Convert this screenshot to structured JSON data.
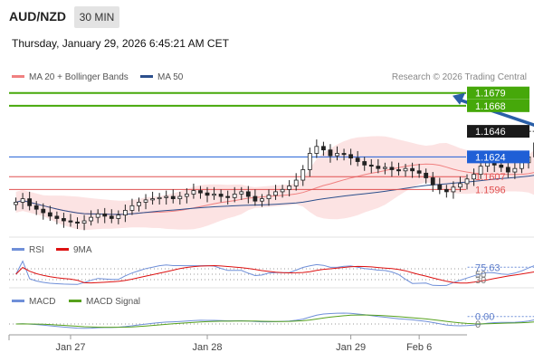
{
  "header": {
    "pair": "AUD/NZD",
    "timeframe": "30 MIN",
    "timestamp": "Thursday, January 29, 2026 6:45:21 AM CET",
    "credit": "Research © 2026 Trading Central"
  },
  "legend": {
    "bb": {
      "label": "MA 20 + Bollinger Bands",
      "color": "#f08080"
    },
    "ma50": {
      "label": "MA 50",
      "color": "#2c4f8c"
    },
    "rsi": {
      "label": "RSI",
      "color": "#6f8fd8"
    },
    "rsi_ma": {
      "label": "9MA",
      "color": "#dd1111"
    },
    "macd": {
      "label": "MACD",
      "color": "#6f8fd8"
    },
    "macd_signal": {
      "label": "MACD Signal",
      "color": "#56a11d"
    }
  },
  "chart_data": {
    "type": "candlestick",
    "price_ylim": [
      1.1555,
      1.1685
    ],
    "series": {
      "close": [
        1.1585,
        1.1588,
        1.1582,
        1.1579,
        1.1576,
        1.1573,
        1.1571,
        1.1569,
        1.1568,
        1.1567,
        1.1569,
        1.1572,
        1.1575,
        1.1573,
        1.1571,
        1.1574,
        1.1578,
        1.1582,
        1.1585,
        1.1587,
        1.1588,
        1.1589,
        1.159,
        1.1588,
        1.159,
        1.1592,
        1.1595,
        1.1593,
        1.1591,
        1.1592,
        1.159,
        1.1589,
        1.1592,
        1.1594,
        1.159,
        1.1586,
        1.1588,
        1.1591,
        1.1594,
        1.1596,
        1.1599,
        1.1604,
        1.1613,
        1.1627,
        1.1633,
        1.163,
        1.1625,
        1.1627,
        1.1626,
        1.1623,
        1.162,
        1.1617,
        1.1616,
        1.1614,
        1.1615,
        1.1613,
        1.1612,
        1.1614,
        1.1612,
        1.161,
        1.1606,
        1.16,
        1.1596,
        1.1594,
        1.1598,
        1.1601,
        1.1605,
        1.1609,
        1.1616,
        1.1619,
        1.1617,
        1.1615,
        1.1611,
        1.1614,
        1.1619,
        1.1624,
        1.1636,
        1.1643,
        1.1646
      ]
    },
    "levels": [
      {
        "value": 1.1679,
        "label": "1.1679",
        "color": "#46a80a",
        "kind": "resistance"
      },
      {
        "value": 1.1668,
        "label": "1.1668",
        "color": "#46a80a",
        "kind": "resistance"
      },
      {
        "value": 1.1646,
        "label": "1.1646",
        "color": "#1a1a1a",
        "kind": "last"
      },
      {
        "value": 1.1624,
        "label": "1.1624",
        "color": "#1f5fd6",
        "kind": "pivot"
      },
      {
        "value": 1.1607,
        "label": "1.1607",
        "color": "#e05050",
        "kind": "support"
      },
      {
        "value": 1.1596,
        "label": "1.1596",
        "color": "#e05050",
        "kind": "support"
      }
    ],
    "arrow": {
      "from": 1.1645,
      "to": 1.1679
    },
    "rsi": {
      "current": "75.63",
      "levels": [
        "50",
        "30"
      ],
      "ylim": [
        0,
        100
      ]
    },
    "macd": {
      "current": "0.00",
      "zero": "0"
    },
    "x_ticks": [
      {
        "label": "Jan 27",
        "index": 8
      },
      {
        "label": "Jan 28",
        "index": 28
      },
      {
        "label": "Jan 29",
        "index": 49
      },
      {
        "label": "Feb 6",
        "index": 59
      }
    ],
    "x_range": [
      -1,
      66
    ]
  }
}
